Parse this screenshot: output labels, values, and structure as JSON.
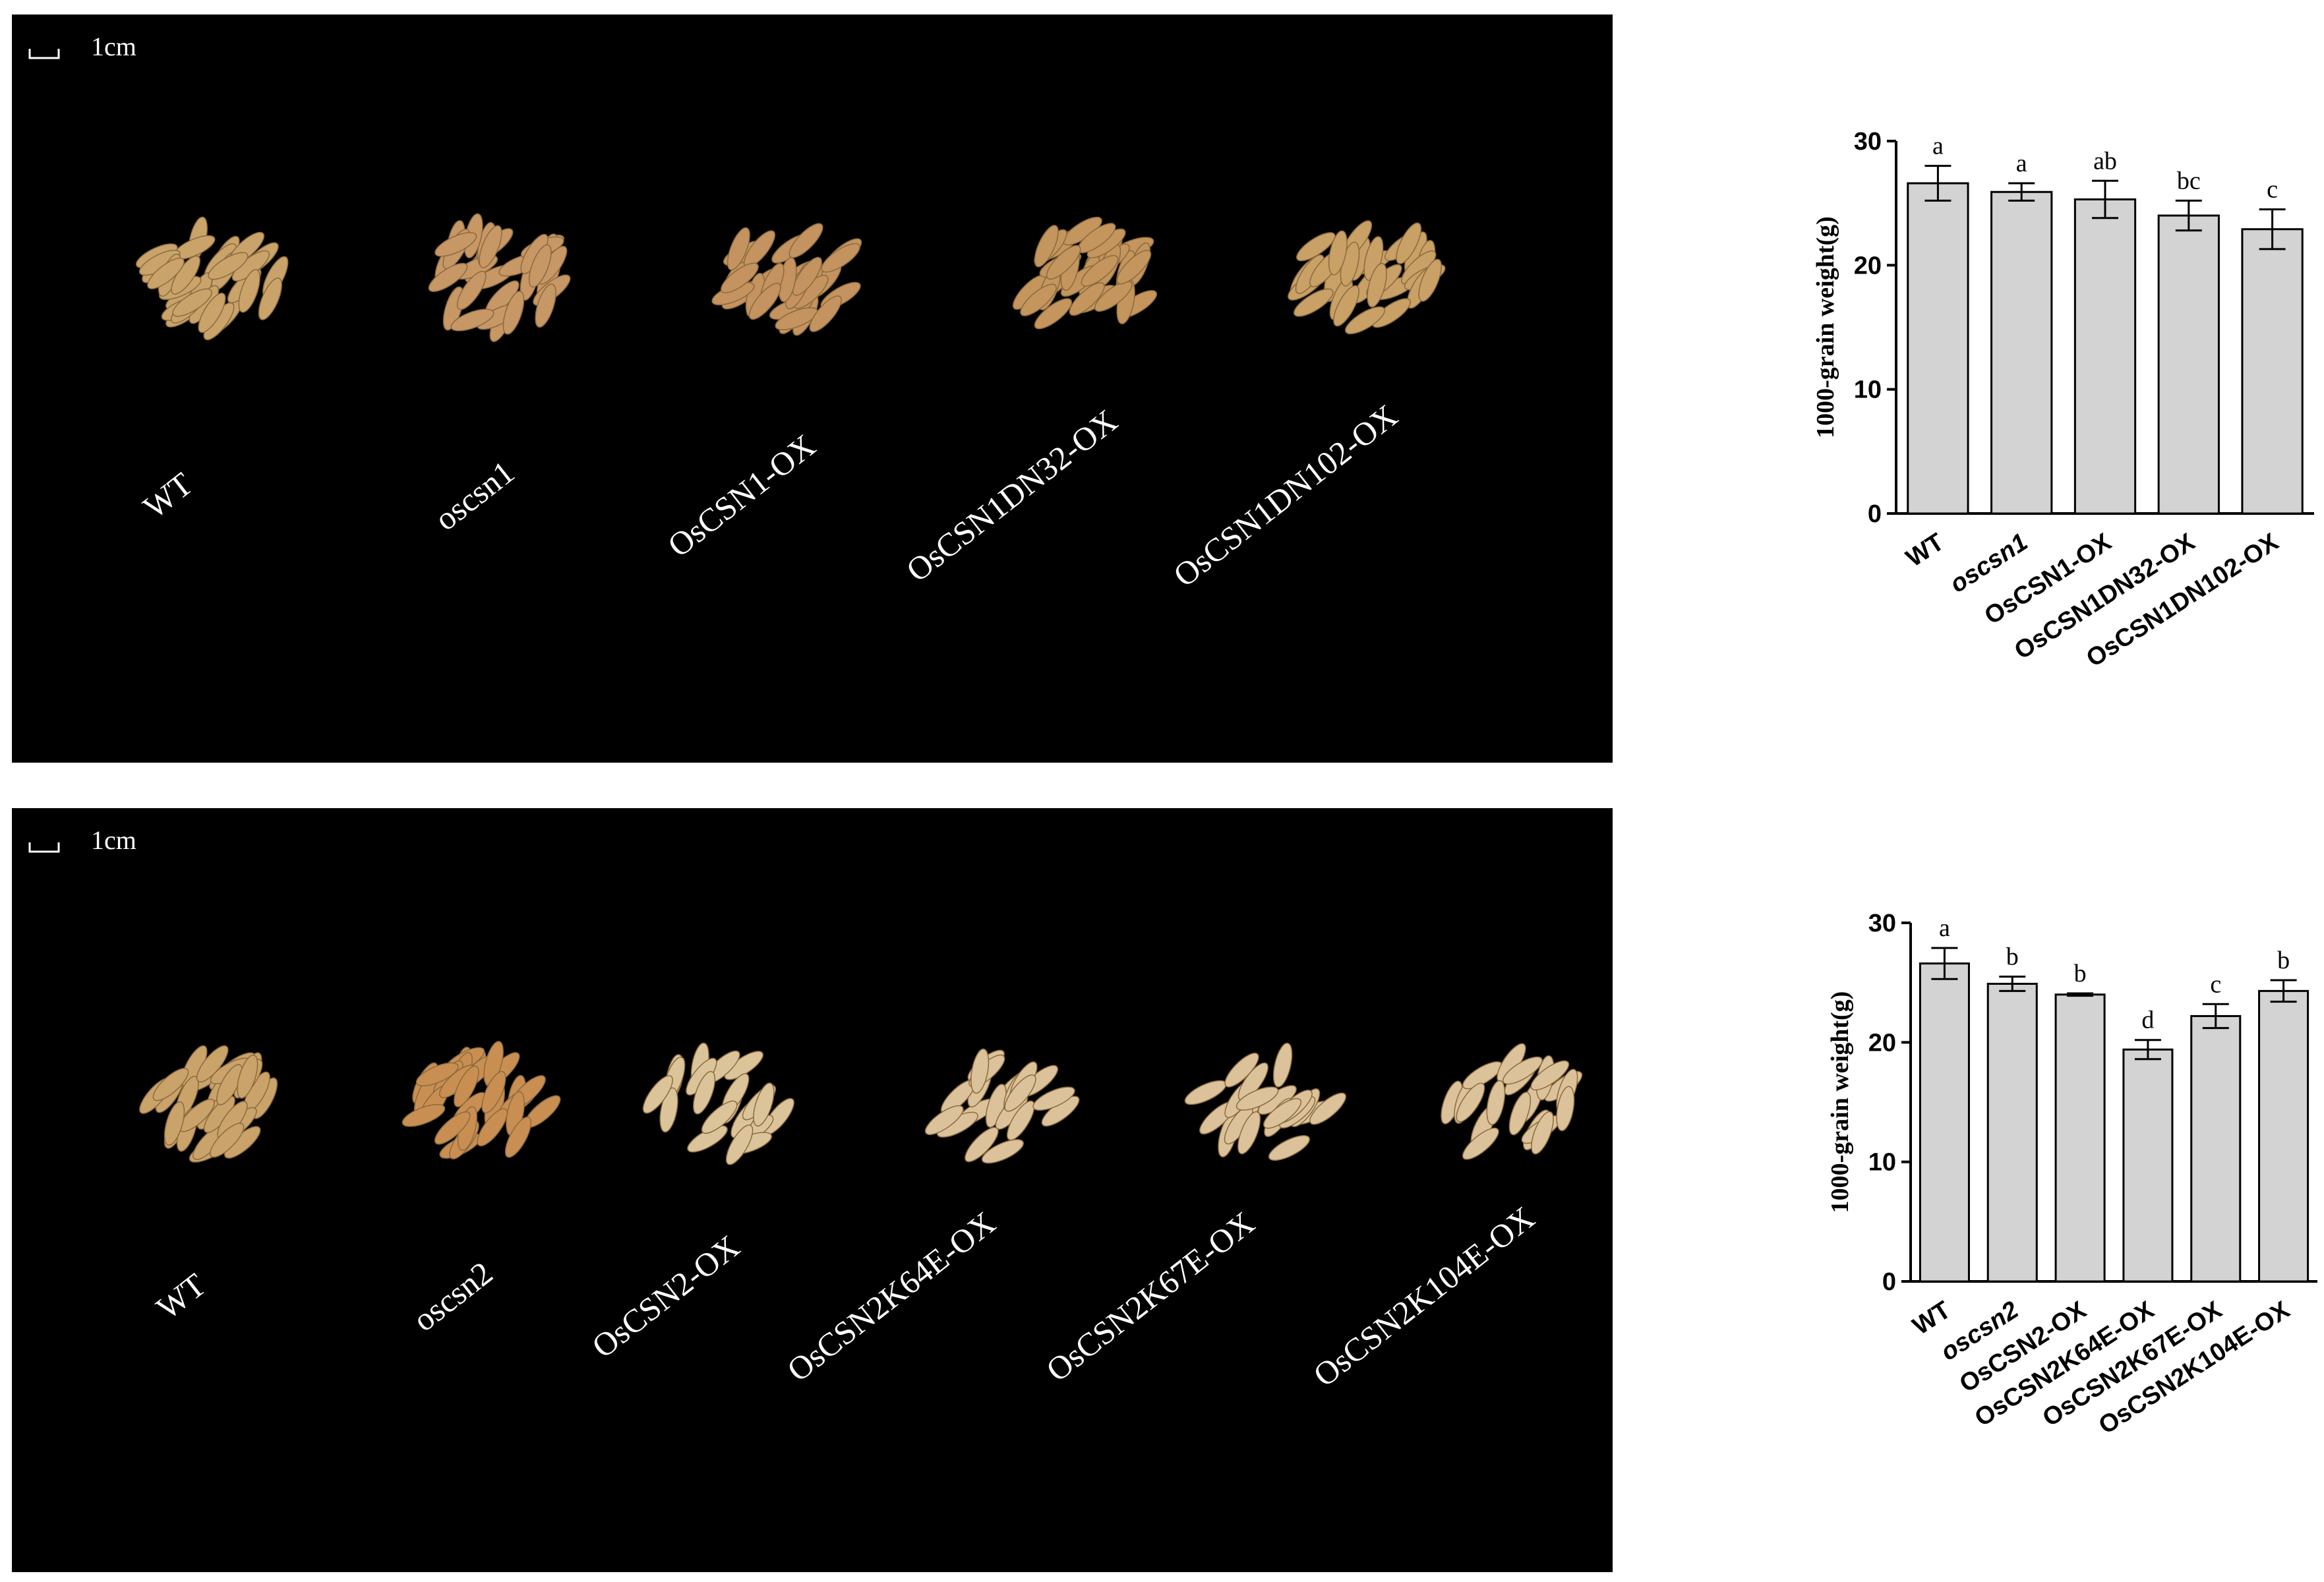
{
  "photos": [
    {
      "scale_label": "1cm",
      "labels": [
        "WT",
        "oscsn1",
        "OsCSN1-OX",
        "OsCSN1DN32-OX",
        "OsCSN1DN102-OX"
      ]
    },
    {
      "scale_label": "1cm",
      "labels": [
        "WT",
        "oscsn2",
        "OsCSN2-OX",
        "OsCSN2K64E-OX",
        "OsCSN2K67E-OX",
        "OsCSN2K104E-OX"
      ]
    }
  ],
  "chart_data": [
    {
      "type": "bar",
      "ylabel": "1000-grain weight(g)",
      "categories": [
        "WT",
        "oscsn1",
        "OsCSN1-OX",
        "OsCSN1DN32-OX",
        "OsCSN1DN102-OX"
      ],
      "values": [
        26.6,
        25.9,
        25.3,
        24.0,
        22.9
      ],
      "errors": [
        1.4,
        0.7,
        1.5,
        1.2,
        1.6
      ],
      "annotations": [
        "a",
        "a",
        "ab",
        "bc",
        "c"
      ],
      "color": "#d3d3d3",
      "ylim": [
        0,
        30
      ],
      "yticks": [
        0,
        10,
        20,
        30
      ]
    },
    {
      "type": "bar",
      "ylabel": "1000-grain weight(g)",
      "categories": [
        "WT",
        "oscsn2",
        "OsCSN2-OX",
        "OsCSN2K64E-OX",
        "OsCSN2K67E-OX",
        "OsCSN2K104E-OX"
      ],
      "values": [
        26.6,
        24.9,
        24.0,
        19.4,
        22.2,
        24.3
      ],
      "errors": [
        1.3,
        0.6,
        0.1,
        0.8,
        1.0,
        0.9
      ],
      "annotations": [
        "a",
        "b",
        "b",
        "d",
        "c",
        "b"
      ],
      "color": "#d3d3d3",
      "ylim": [
        0,
        30
      ],
      "yticks": [
        0,
        10,
        20,
        30
      ]
    }
  ]
}
